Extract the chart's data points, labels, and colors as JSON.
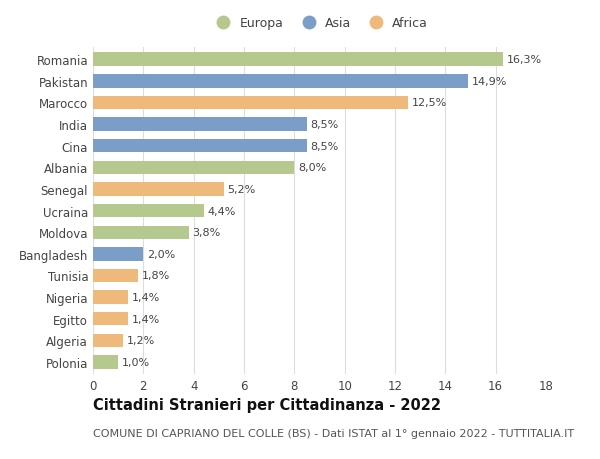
{
  "countries": [
    "Romania",
    "Pakistan",
    "Marocco",
    "India",
    "Cina",
    "Albania",
    "Senegal",
    "Ucraina",
    "Moldova",
    "Bangladesh",
    "Tunisia",
    "Nigeria",
    "Egitto",
    "Algeria",
    "Polonia"
  ],
  "values": [
    16.3,
    14.9,
    12.5,
    8.5,
    8.5,
    8.0,
    5.2,
    4.4,
    3.8,
    2.0,
    1.8,
    1.4,
    1.4,
    1.2,
    1.0
  ],
  "labels": [
    "16,3%",
    "14,9%",
    "12,5%",
    "8,5%",
    "8,5%",
    "8,0%",
    "5,2%",
    "4,4%",
    "3,8%",
    "2,0%",
    "1,8%",
    "1,4%",
    "1,4%",
    "1,2%",
    "1,0%"
  ],
  "continents": [
    "Europa",
    "Asia",
    "Africa",
    "Asia",
    "Asia",
    "Europa",
    "Africa",
    "Europa",
    "Europa",
    "Asia",
    "Africa",
    "Africa",
    "Africa",
    "Africa",
    "Europa"
  ],
  "colors": {
    "Europa": "#b5c98e",
    "Asia": "#7b9ec9",
    "Africa": "#f0b97c"
  },
  "legend_order": [
    "Europa",
    "Asia",
    "Africa"
  ],
  "title": "Cittadini Stranieri per Cittadinanza - 2022",
  "subtitle": "COMUNE DI CAPRIANO DEL COLLE (BS) - Dati ISTAT al 1° gennaio 2022 - TUTTITALIA.IT",
  "xlim": [
    0,
    18
  ],
  "xticks": [
    0,
    2,
    4,
    6,
    8,
    10,
    12,
    14,
    16,
    18
  ],
  "background_color": "#ffffff",
  "grid_color": "#dddddd",
  "bar_height": 0.62,
  "title_fontsize": 10.5,
  "subtitle_fontsize": 8,
  "label_fontsize": 8,
  "ytick_fontsize": 8.5,
  "xtick_fontsize": 8.5,
  "legend_fontsize": 9
}
